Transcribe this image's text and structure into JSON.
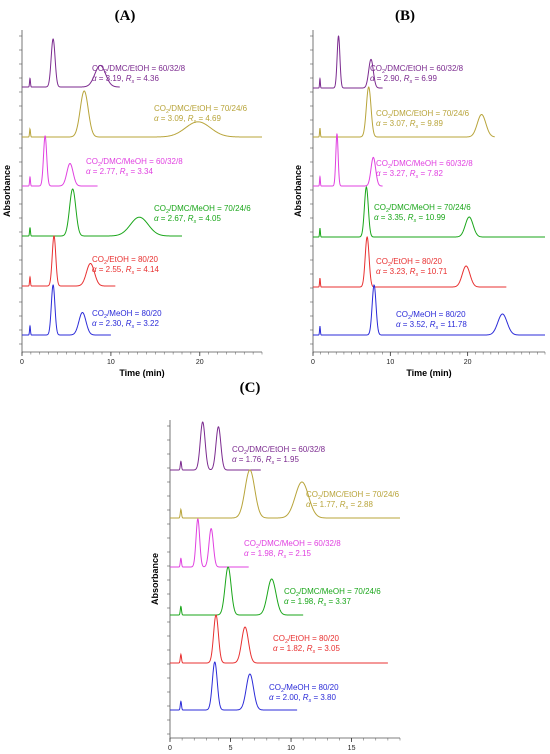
{
  "figure": {
    "title": "",
    "colors": {
      "purple": "#7b2a8f",
      "olive": "#b8a43a",
      "magenta": "#e040e0",
      "green": "#1aa61a",
      "red": "#e83030",
      "blue": "#2b2bd8"
    }
  },
  "chart_data": [
    {
      "panel": "(A)",
      "type": "line",
      "xlabel": "Time (min)",
      "ylabel": "Absorbance",
      "xlim": [
        0,
        27
      ],
      "xticks": [
        0,
        10,
        20
      ],
      "series": [
        {
          "name": "CO2/DMC/EtOH = 60/32/8",
          "alpha": "3.19",
          "Rs": "4.36",
          "color": "#7b2a8f",
          "t0": 0.9,
          "peaks": [
            {
              "t": 3.5,
              "h": 1.0,
              "w": 0.22
            },
            {
              "t": 8.8,
              "h": 0.45,
              "w": 0.6
            }
          ],
          "end": 11
        },
        {
          "name": "CO2/DMC/EtOH = 70/24/6",
          "alpha": "3.09",
          "Rs": "4.69",
          "color": "#b8a43a",
          "t0": 0.9,
          "peaks": [
            {
              "t": 7.0,
              "h": 1.0,
              "w": 0.45
            },
            {
              "t": 19.8,
              "h": 0.33,
              "w": 1.4
            }
          ],
          "end": 27
        },
        {
          "name": "CO2/DMC/MeOH = 60/32/8",
          "alpha": "2.77",
          "Rs": "3.34",
          "color": "#e040e0",
          "t0": 0.9,
          "peaks": [
            {
              "t": 2.6,
              "h": 1.0,
              "w": 0.18
            },
            {
              "t": 5.4,
              "h": 0.45,
              "w": 0.35
            }
          ],
          "end": 8.5
        },
        {
          "name": "CO2/DMC/MeOH = 70/24/6",
          "alpha": "2.67",
          "Rs": "4.05",
          "color": "#1aa61a",
          "t0": 0.9,
          "peaks": [
            {
              "t": 5.7,
              "h": 1.0,
              "w": 0.35
            },
            {
              "t": 13.2,
              "h": 0.4,
              "w": 1.0
            }
          ],
          "end": 18
        },
        {
          "name": "CO2/EtOH = 80/20",
          "alpha": "2.55",
          "Rs": "4.14",
          "color": "#e83030",
          "t0": 0.9,
          "peaks": [
            {
              "t": 3.6,
              "h": 1.0,
              "w": 0.2
            },
            {
              "t": 7.7,
              "h": 0.45,
              "w": 0.45
            }
          ],
          "end": 10.5
        },
        {
          "name": "CO2/MeOH = 80/20",
          "alpha": "2.30",
          "Rs": "3.22",
          "color": "#2b2bd8",
          "t0": 0.9,
          "peaks": [
            {
              "t": 3.5,
              "h": 1.0,
              "w": 0.2
            },
            {
              "t": 6.8,
              "h": 0.45,
              "w": 0.4
            }
          ],
          "end": 10
        }
      ]
    },
    {
      "panel": "(B)",
      "type": "line",
      "xlabel": "Time (min)",
      "ylabel": "Absorbance",
      "xlim": [
        0,
        30
      ],
      "xticks": [
        0,
        10,
        20
      ],
      "series": [
        {
          "name": "CO2/DMC/EtOH = 60/32/8",
          "alpha": "2.90",
          "Rs": "6.99",
          "color": "#7b2a8f",
          "t0": 0.9,
          "peaks": [
            {
              "t": 3.3,
              "h": 1.0,
              "w": 0.18
            },
            {
              "t": 7.5,
              "h": 0.55,
              "w": 0.3
            }
          ],
          "end": 9
        },
        {
          "name": "CO2/DMC/EtOH = 70/24/6",
          "alpha": "3.07",
          "Rs": "9.89",
          "color": "#b8a43a",
          "t0": 0.9,
          "peaks": [
            {
              "t": 7.2,
              "h": 1.0,
              "w": 0.3
            },
            {
              "t": 21.8,
              "h": 0.45,
              "w": 0.55
            }
          ],
          "end": 23.5
        },
        {
          "name": "CO2/DMC/MeOH = 60/32/8",
          "alpha": "3.27",
          "Rs": "7.82",
          "color": "#e040e0",
          "t0": 0.9,
          "peaks": [
            {
              "t": 3.1,
              "h": 1.0,
              "w": 0.15
            },
            {
              "t": 7.8,
              "h": 0.55,
              "w": 0.3
            }
          ],
          "end": 9
        },
        {
          "name": "CO2/DMC/MeOH = 70/24/6",
          "alpha": "3.35",
          "Rs": "10.99",
          "color": "#1aa61a",
          "t0": 0.9,
          "peaks": [
            {
              "t": 6.9,
              "h": 1.0,
              "w": 0.25
            },
            {
              "t": 20.2,
              "h": 0.4,
              "w": 0.5
            }
          ],
          "end": 30
        },
        {
          "name": "CO2/EtOH = 80/20",
          "alpha": "3.23",
          "Rs": "10.71",
          "color": "#e83030",
          "t0": 0.9,
          "peaks": [
            {
              "t": 7.0,
              "h": 1.0,
              "w": 0.25
            },
            {
              "t": 19.8,
              "h": 0.42,
              "w": 0.5
            }
          ],
          "end": 25
        },
        {
          "name": "CO2/MeOH = 80/20",
          "alpha": "3.52",
          "Rs": "11.78",
          "color": "#2b2bd8",
          "t0": 0.9,
          "peaks": [
            {
              "t": 7.9,
              "h": 1.0,
              "w": 0.25
            },
            {
              "t": 24.5,
              "h": 0.42,
              "w": 0.6
            }
          ],
          "end": 30
        }
      ]
    },
    {
      "panel": "(C)",
      "type": "line",
      "xlabel": "Time (min)",
      "ylabel": "Absorbance",
      "xlim": [
        0,
        19
      ],
      "xticks": [
        0,
        5,
        10,
        15
      ],
      "series": [
        {
          "name": "CO2/DMC/EtOH = 60/32/8",
          "alpha": "1.76",
          "Rs": "1.95",
          "color": "#7b2a8f",
          "t0": 0.9,
          "peaks": [
            {
              "t": 2.7,
              "h": 1.0,
              "w": 0.2
            },
            {
              "t": 4.0,
              "h": 0.9,
              "w": 0.2
            }
          ],
          "end": 7.5
        },
        {
          "name": "CO2/DMC/EtOH = 70/24/6",
          "alpha": "1.77",
          "Rs": "2.88",
          "color": "#b8a43a",
          "t0": 0.9,
          "peaks": [
            {
              "t": 6.6,
              "h": 1.0,
              "w": 0.4
            },
            {
              "t": 10.9,
              "h": 0.75,
              "w": 0.55
            }
          ],
          "end": 19
        },
        {
          "name": "CO2/DMC/MeOH = 60/32/8",
          "alpha": "1.98",
          "Rs": "2.15",
          "color": "#e040e0",
          "t0": 0.9,
          "peaks": [
            {
              "t": 2.3,
              "h": 1.0,
              "w": 0.15
            },
            {
              "t": 3.4,
              "h": 0.8,
              "w": 0.18
            }
          ],
          "end": 6.5
        },
        {
          "name": "CO2/DMC/MeOH = 70/24/6",
          "alpha": "1.98",
          "Rs": "3.37",
          "color": "#1aa61a",
          "t0": 0.9,
          "peaks": [
            {
              "t": 4.8,
              "h": 1.0,
              "w": 0.25
            },
            {
              "t": 8.4,
              "h": 0.75,
              "w": 0.35
            }
          ],
          "end": 11
        },
        {
          "name": "CO2/EtOH = 80/20",
          "alpha": "1.82",
          "Rs": "3.05",
          "color": "#e83030",
          "t0": 0.9,
          "peaks": [
            {
              "t": 3.8,
              "h": 1.0,
              "w": 0.2
            },
            {
              "t": 6.2,
              "h": 0.75,
              "w": 0.28
            }
          ],
          "end": 18
        },
        {
          "name": "CO2/MeOH = 80/20",
          "alpha": "2.00",
          "Rs": "3.80",
          "color": "#2b2bd8",
          "t0": 0.9,
          "peaks": [
            {
              "t": 3.7,
              "h": 1.0,
              "w": 0.2
            },
            {
              "t": 6.6,
              "h": 0.75,
              "w": 0.3
            }
          ],
          "end": 10.5
        }
      ]
    }
  ]
}
